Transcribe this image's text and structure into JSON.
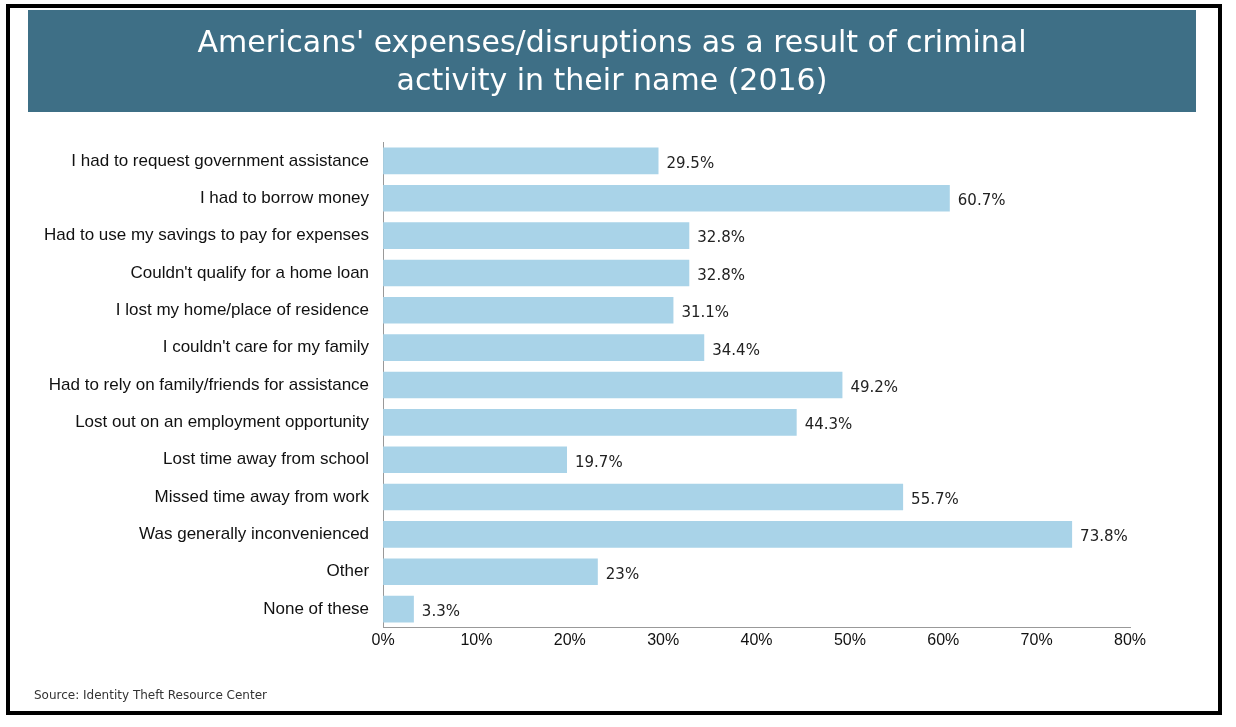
{
  "chart_data": {
    "type": "bar",
    "orientation": "horizontal",
    "title": "Americans' expenses/disruptions as a result of criminal activity in their name (2016)",
    "categories": [
      "I had to request government assistance",
      "I had to borrow money",
      "Had to use my savings to pay for expenses",
      "Couldn't qualify for a home loan",
      "I lost my home/place of residence",
      "I couldn't care for my family",
      "Had to rely on family/friends for assistance",
      "Lost out on an employment opportunity",
      "Lost time away from school",
      "Missed time away from work",
      "Was generally inconvenienced",
      "Other",
      "None of these"
    ],
    "values": [
      29.5,
      60.7,
      32.8,
      32.8,
      31.1,
      34.4,
      49.2,
      44.3,
      19.7,
      55.7,
      73.8,
      23,
      3.3
    ],
    "value_labels": [
      "29.5%",
      "60.7%",
      "32.8%",
      "32.8%",
      "31.1%",
      "34.4%",
      "49.2%",
      "44.3%",
      "19.7%",
      "55.7%",
      "73.8%",
      "23%",
      "3.3%"
    ],
    "color": "#a9d3e8",
    "xlim": [
      0,
      80
    ],
    "xticks": [
      {
        "value": 0,
        "label": "0%"
      },
      {
        "value": 10,
        "label": "10%"
      },
      {
        "value": 20,
        "label": "20%"
      },
      {
        "value": 30,
        "label": "30%"
      },
      {
        "value": 40,
        "label": "40%"
      },
      {
        "value": 50,
        "label": "50%"
      },
      {
        "value": 60,
        "label": "60%"
      },
      {
        "value": 70,
        "label": "70%"
      },
      {
        "value": 80,
        "label": "80%"
      }
    ],
    "grid": false,
    "legend": false,
    "annotations": [
      "Source: Identity Theft Resource Center"
    ]
  }
}
